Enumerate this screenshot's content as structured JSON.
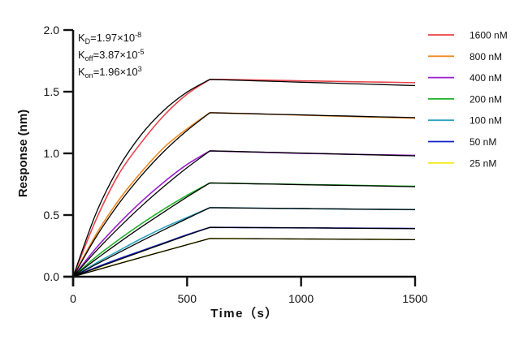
{
  "chart_data": {
    "type": "line",
    "title": "",
    "xlabel": "Time（s）",
    "ylabel": "Response (nm)",
    "xlim": [
      0,
      1500
    ],
    "ylim": [
      0,
      2.0
    ],
    "xticks": [
      0,
      500,
      1000,
      1500
    ],
    "xtick_labels": [
      "0",
      "500",
      "1000",
      "1500"
    ],
    "yticks": [
      0,
      0.5,
      1.0,
      1.5,
      2.0
    ],
    "ytick_labels": [
      "0.0",
      "0.5",
      "1.0",
      "1.5",
      "2.0"
    ],
    "grid": false,
    "legend_position": "right",
    "annotations": {
      "kd": {
        "base": "K",
        "sub": "D",
        "value": "=1.97×10",
        "exp": "-8"
      },
      "koff": {
        "base": "K",
        "sub": "off",
        "value": "=3.87×10",
        "exp": "-5"
      },
      "kon": {
        "base": "K",
        "sub": "on",
        "value": "=1.96×10",
        "exp": "3"
      }
    },
    "x": [
      0,
      100,
      200,
      300,
      400,
      500,
      600,
      700,
      800,
      900,
      1000,
      1100,
      1200,
      1300,
      1400,
      1500
    ],
    "series": [
      {
        "name": "1600 nM",
        "color": "#e8434a",
        "values": [
          0,
          0.46,
          0.83,
          1.09,
          1.31,
          1.48,
          1.6,
          1.598,
          1.595,
          1.592,
          1.588,
          1.585,
          1.582,
          1.579,
          1.576,
          1.573
        ]
      },
      {
        "name": "800 nM",
        "color": "#f08a24",
        "values": [
          0,
          0.34,
          0.62,
          0.85,
          1.05,
          1.2,
          1.33,
          1.325,
          1.32,
          1.315,
          1.31,
          1.305,
          1.3,
          1.295,
          1.29,
          1.285
        ]
      },
      {
        "name": "400 nM",
        "color": "#9b1fd0",
        "values": [
          0,
          0.23,
          0.43,
          0.61,
          0.77,
          0.91,
          1.02,
          1.015,
          1.01,
          1.005,
          1.0,
          0.997,
          0.993,
          0.99,
          0.987,
          0.984
        ]
      },
      {
        "name": "200 nM",
        "color": "#1fb02a",
        "values": [
          0,
          0.16,
          0.3,
          0.43,
          0.55,
          0.66,
          0.76,
          0.757,
          0.754,
          0.751,
          0.748,
          0.745,
          0.742,
          0.739,
          0.736,
          0.733
        ]
      },
      {
        "name": "100 nM",
        "color": "#2aa3bf",
        "values": [
          0,
          0.11,
          0.21,
          0.31,
          0.4,
          0.48,
          0.56,
          0.558,
          0.556,
          0.554,
          0.552,
          0.55,
          0.548,
          0.546,
          0.545,
          0.544
        ]
      },
      {
        "name": "50 nM",
        "color": "#1020c8",
        "values": [
          0,
          0.075,
          0.145,
          0.21,
          0.275,
          0.34,
          0.4,
          0.399,
          0.398,
          0.397,
          0.396,
          0.395,
          0.394,
          0.393,
          0.392,
          0.391
        ]
      },
      {
        "name": "25 nM",
        "color": "#f2ea1a",
        "values": [
          0,
          0.055,
          0.107,
          0.158,
          0.209,
          0.26,
          0.31,
          0.309,
          0.308,
          0.307,
          0.306,
          0.305,
          0.304,
          0.303,
          0.302,
          0.301
        ]
      }
    ],
    "fit_series": [
      {
        "name": "fit 1600 nM",
        "color": "#000000",
        "values": [
          0,
          0.511,
          0.884,
          1.154,
          1.352,
          1.497,
          1.6,
          1.594,
          1.588,
          1.583,
          1.577,
          1.572,
          1.566,
          1.561,
          1.555,
          1.55
        ]
      },
      {
        "name": "fit 800 nM",
        "color": "#000000",
        "values": [
          0,
          0.32,
          0.591,
          0.821,
          1.019,
          1.186,
          1.33,
          1.325,
          1.321,
          1.316,
          1.312,
          1.307,
          1.303,
          1.298,
          1.294,
          1.29
        ]
      },
      {
        "name": "fit 400 nM",
        "color": "#000000",
        "values": [
          0,
          0.207,
          0.396,
          0.572,
          0.734,
          0.884,
          1.02,
          1.016,
          1.011,
          1.007,
          1.002,
          0.998,
          0.993,
          0.989,
          0.984,
          0.98
        ]
      },
      {
        "name": "fit 200 nM",
        "color": "#000000",
        "values": [
          0,
          0.141,
          0.275,
          0.404,
          0.527,
          0.647,
          0.76,
          0.757,
          0.753,
          0.75,
          0.746,
          0.743,
          0.74,
          0.737,
          0.733,
          0.73
        ]
      },
      {
        "name": "fit 100 nM",
        "color": "#000000",
        "values": [
          0,
          0.099,
          0.195,
          0.29,
          0.382,
          0.472,
          0.56,
          0.558,
          0.556,
          0.554,
          0.553,
          0.551,
          0.549,
          0.547,
          0.546,
          0.544
        ]
      },
      {
        "name": "fit 50 nM",
        "color": "#000000",
        "values": [
          0,
          0.069,
          0.137,
          0.204,
          0.27,
          0.336,
          0.4,
          0.399,
          0.398,
          0.397,
          0.396,
          0.395,
          0.393,
          0.392,
          0.391,
          0.39
        ]
      },
      {
        "name": "fit 25 nM",
        "color": "#000000",
        "values": [
          0,
          0.053,
          0.105,
          0.157,
          0.208,
          0.259,
          0.31,
          0.309,
          0.308,
          0.307,
          0.306,
          0.305,
          0.304,
          0.303,
          0.302,
          0.3
        ]
      }
    ]
  }
}
